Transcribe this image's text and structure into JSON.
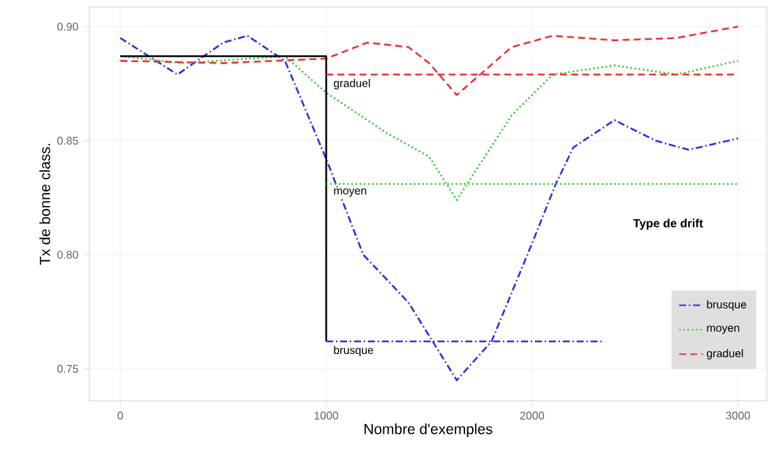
{
  "chart_data": {
    "type": "line",
    "xlabel": "Nombre d'exemples",
    "ylabel": "Tx de bonne class.",
    "legend_title": "Type de drift",
    "xlim": [
      -150,
      3140
    ],
    "ylim": [
      0.736,
      0.9086
    ],
    "xticks": [
      0,
      1000,
      2000,
      3000
    ],
    "yticks": [
      {
        "value": 0.75,
        "label": "0.75"
      },
      {
        "value": 0.8,
        "label": "0.80"
      },
      {
        "value": 0.85,
        "label": "0.85"
      },
      {
        "value": 0.9,
        "label": "0.90"
      }
    ],
    "grid": true,
    "legend": "right",
    "marker": "none",
    "series": [
      {
        "name": "brusque",
        "color": "#2b2bf0",
        "line_style": "dashdot",
        "x": [
          0,
          278,
          500,
          617,
          800,
          1000,
          1180,
          1400,
          1634,
          1803,
          2000,
          2115,
          2200,
          2400,
          2600,
          2760,
          3000
        ],
        "values": [
          0.895,
          0.879,
          0.893,
          0.896,
          0.885,
          0.842,
          0.8,
          0.779,
          0.745,
          0.762,
          0.805,
          0.831,
          0.847,
          0.859,
          0.85,
          0.846,
          0.851
        ]
      },
      {
        "name": "moyen",
        "color": "#33cc33",
        "line_style": "dotted",
        "x": [
          0,
          300,
          800,
          1000,
          1300,
          1500,
          1634,
          1900,
          2100,
          2400,
          2700,
          3000
        ],
        "values": [
          0.887,
          0.884,
          0.887,
          0.871,
          0.853,
          0.843,
          0.824,
          0.861,
          0.879,
          0.883,
          0.879,
          0.885
        ]
      },
      {
        "name": "graduel",
        "color": "#f03030",
        "line_style": "dashed",
        "x": [
          0,
          500,
          1000,
          1200,
          1400,
          1500,
          1634,
          1900,
          2100,
          2400,
          2700,
          3000
        ],
        "values": [
          0.885,
          0.884,
          0.886,
          0.893,
          0.891,
          0.884,
          0.87,
          0.891,
          0.896,
          0.894,
          0.895,
          0.9
        ]
      },
      {
        "color": "#000000",
        "line_style": "solid",
        "x": [
          0,
          1000,
          1000
        ],
        "values": [
          0.887,
          0.887,
          0.762
        ]
      },
      {
        "color": "#f03030",
        "line_style": "dashed",
        "x": [
          1000,
          3000
        ],
        "values": [
          0.879,
          0.879
        ]
      },
      {
        "color": "#33cc33",
        "line_style": "dotted",
        "x": [
          1000,
          3000
        ],
        "values": [
          0.831,
          0.831
        ]
      },
      {
        "color": "#2b2bf0",
        "line_style": "dashdot",
        "x": [
          1000,
          2350
        ],
        "values": [
          0.762,
          0.762
        ]
      }
    ],
    "annotations": [
      {
        "text": "graduel",
        "y": 0.879
      },
      {
        "text": "moyen",
        "y": 0.831
      },
      {
        "text": "brusque",
        "y": 0.762
      }
    ]
  }
}
